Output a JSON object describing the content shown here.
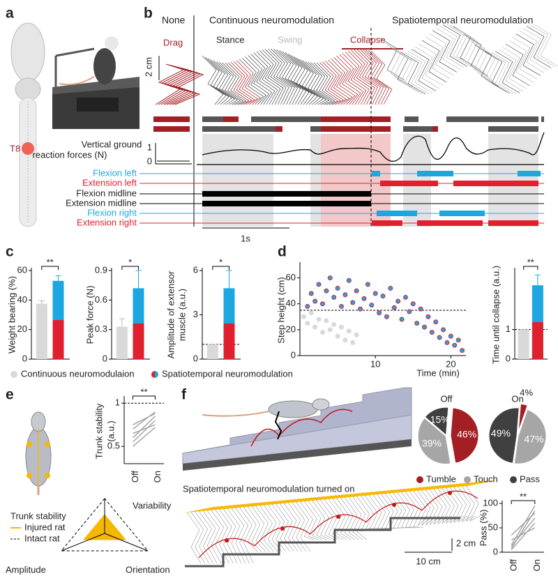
{
  "panel_labels": [
    "a",
    "b",
    "c",
    "d",
    "e",
    "f"
  ],
  "panel_a": {
    "level": "T8"
  },
  "panel_b": {
    "conditions": [
      "None",
      "Continuous neuromodulation",
      "Spatiotemporal neuromodulation"
    ],
    "phases": [
      "Drag",
      "Stance",
      "Swing",
      "Collapse"
    ],
    "height_scale": "2 cm",
    "force_label": [
      "Vertical ground",
      "reaction forces (N)"
    ],
    "force_ticks": [
      1,
      0
    ],
    "muscles": [
      "Flexion left",
      "Extension left",
      "Flexion midline",
      "Extension midline",
      "Flexion right",
      "Extension right"
    ],
    "time_scale": "1s"
  },
  "legend_c": [
    "Continuous neuromodulaion",
    "Spatiotemporal neuromodulation"
  ],
  "panel_e": {
    "title": "Trunk stability",
    "legend": [
      "Injured rat",
      "Intact rat"
    ],
    "axes": [
      "Variability",
      "Amplitude",
      "Orientation"
    ]
  },
  "panel_f": {
    "subtitle": "Spatiotemporal neuromodulation turned on",
    "height_scale": "2 cm",
    "length_scale": "10 cm"
  },
  "chart_data": [
    {
      "type": "bar",
      "ylabel": "Weight bearing (%)",
      "values": [
        37.5,
        53
      ],
      "errors": [
        2,
        3.5
      ],
      "colors": [
        "#d9d9d9",
        "#e0202e",
        "#1ca7e0"
      ],
      "ylim": [
        0,
        60
      ],
      "yticks": [
        0,
        20,
        40,
        60
      ],
      "significance": "**"
    },
    {
      "type": "bar",
      "ylabel": "Peak force (N)",
      "values": [
        0.33,
        0.72
      ],
      "errors": [
        0.08,
        0.18
      ],
      "colors": [
        "#d9d9d9",
        "#e0202e",
        "#1ca7e0"
      ],
      "ylim": [
        0,
        0.9
      ],
      "yticks": [
        0,
        0.3,
        0.6,
        0.9
      ],
      "significance": "*"
    },
    {
      "type": "bar",
      "ylabel": [
        "Amplitude of extensor",
        "muscle (a.u.)"
      ],
      "values": [
        1,
        4.8
      ],
      "errors": [
        0,
        1.2
      ],
      "colors": [
        "#d9d9d9",
        "#e0202e",
        "#1ca7e0"
      ],
      "ylim": [
        0,
        6
      ],
      "yticks": [
        0,
        3,
        6
      ],
      "reference_line": 1,
      "significance": "*"
    },
    {
      "type": "scatter",
      "ylabel": "Step height (cm)",
      "xlabel": "Time (min)",
      "xlim": [
        0,
        22
      ],
      "xticks": [
        10,
        20
      ],
      "ylim": [
        0,
        70
      ],
      "yticks": [
        0,
        20,
        40,
        60
      ],
      "reference_line": 35,
      "series": [
        {
          "color": "#d9d9d9",
          "edge_color": "#d9d9d9",
          "x": [
            0.5,
            1,
            1.5,
            2,
            2.5,
            3,
            3.5,
            4,
            4.5,
            5,
            5.5,
            6,
            6.5,
            7,
            7.5
          ],
          "values": [
            30,
            25,
            33,
            22,
            28,
            18,
            27,
            20,
            24,
            15,
            22,
            12,
            19,
            10,
            16
          ]
        },
        {
          "color": "#1ca7e0",
          "edge_color": "#e0202e",
          "x": [
            1,
            1.5,
            2,
            2.5,
            3,
            3.5,
            4,
            4.5,
            5,
            5.5,
            6,
            6.5,
            7,
            7.5,
            8,
            8.5,
            9,
            9.5,
            10,
            10.5,
            11,
            11.5,
            12,
            12.5,
            13,
            13.5,
            14,
            14.5,
            15,
            15.5,
            16,
            16.5,
            17,
            17.5,
            18,
            18.5,
            19,
            19.5,
            20,
            20.5,
            21,
            21.5
          ],
          "values": [
            38,
            48,
            42,
            55,
            40,
            50,
            60,
            45,
            52,
            38,
            47,
            58,
            41,
            50,
            36,
            44,
            55,
            39,
            48,
            33,
            46,
            30,
            52,
            37,
            42,
            28,
            45,
            34,
            40,
            25,
            36,
            22,
            30,
            18,
            26,
            14,
            20,
            10,
            15,
            8,
            12,
            4
          ]
        }
      ]
    },
    {
      "type": "bar",
      "ylabel": "Time until collapse (a.u.)",
      "values": [
        1,
        2.5
      ],
      "errors": [
        0,
        0.35
      ],
      "colors": [
        "#d9d9d9",
        "#e0202e",
        "#1ca7e0"
      ],
      "ylim": [
        0,
        3
      ],
      "yticks": [
        0,
        1
      ],
      "reference_line": 1,
      "significance": "**"
    },
    {
      "type": "slope",
      "ylabel": [
        "Trunk stability",
        "(a.u.)"
      ],
      "categories": [
        "Off",
        "On"
      ],
      "ylim": [
        0.3,
        1.05
      ],
      "yticks": [
        0.5,
        1
      ],
      "reference_line": 1,
      "significance": "**",
      "color": "#a6a6a6",
      "series": [
        {
          "values": [
            0.6,
            0.85
          ]
        },
        {
          "values": [
            0.55,
            0.8
          ]
        },
        {
          "values": [
            0.7,
            0.9
          ]
        },
        {
          "values": [
            0.65,
            0.75
          ]
        },
        {
          "values": [
            0.5,
            0.72
          ]
        },
        {
          "values": [
            0.75,
            0.88
          ]
        }
      ]
    },
    {
      "type": "pie",
      "title": "Off",
      "categories": [
        "Tumble",
        "Touch",
        "Pass"
      ],
      "values": [
        46,
        39,
        15
      ],
      "value_labels": [
        "46%",
        "39%",
        "15%"
      ],
      "colors": [
        "#a31f24",
        "#a6a6a6",
        "#404040"
      ]
    },
    {
      "type": "pie",
      "title": "On",
      "categories": [
        "Tumble",
        "Touch",
        "Pass"
      ],
      "values": [
        4,
        47,
        49
      ],
      "value_labels": [
        "4%",
        "47%",
        "49%"
      ],
      "colors": [
        "#a31f24",
        "#a6a6a6",
        "#404040"
      ]
    },
    {
      "type": "slope",
      "ylabel": "Pass (%)",
      "categories": [
        "Off",
        "On"
      ],
      "ylim": [
        0,
        100
      ],
      "yticks": [
        0,
        50,
        100
      ],
      "significance": "**",
      "color": "#a6a6a6",
      "series": [
        {
          "values": [
            5,
            60
          ]
        },
        {
          "values": [
            8,
            85
          ]
        },
        {
          "values": [
            12,
            70
          ]
        },
        {
          "values": [
            15,
            95
          ]
        },
        {
          "values": [
            25,
            50
          ]
        },
        {
          "values": [
            35,
            80
          ]
        }
      ]
    }
  ]
}
